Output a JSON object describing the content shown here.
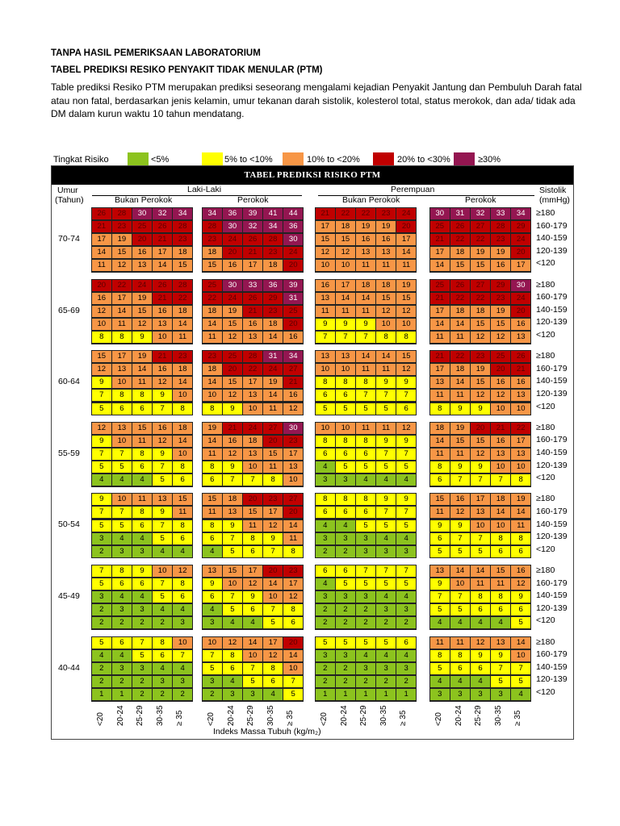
{
  "heading1": "TANPA HASIL PEMERIKSAAN LABORATORIUM",
  "heading2": "TABEL PREDIKSI RESIKO PENYAKIT TIDAK MENULAR (PTM)",
  "intro": "Table prediksi Resiko PTM merupakan prediksi seseorang mengalami kejadian Penyakit Jantung dan Pembuluh Darah  fatal atau non fatal, berdasarkan jenis kelamin, umur tekanan darah sistolik, kolesterol total, status merokok, dan ada/ tidak ada DM dalam kurun waktu 10 tahun mendatang.",
  "legend": {
    "title": "Tingkat Risiko",
    "items": [
      {
        "label": "<5%",
        "color": "#8cc31e"
      },
      {
        "label": "5% to <10%",
        "color": "#ffff00"
      },
      {
        "label": "10% to <20%",
        "color": "#f79646"
      },
      {
        "label": "20% to <30%",
        "color": "#c00000"
      },
      {
        "label": "≥30%",
        "color": "#941651"
      }
    ]
  },
  "table": {
    "title": "TABEL PREDIKSI RISIKO PTM",
    "age_header": "Umur",
    "age_unit": "(Tahun)",
    "sys_header": "Sistolik",
    "sys_unit": "(mmHg)",
    "sex": [
      "Laki-Laki",
      "Perempuan"
    ],
    "smoke": [
      "Bukan Perokok",
      "Perokok",
      "Bukan Perokok",
      "Perokok"
    ],
    "systolic": [
      "≥180",
      "160-179",
      "140-159",
      "120-139",
      "<120"
    ],
    "bmi": [
      "<20",
      "20-24",
      "25-29",
      "30-35",
      "≥ 35"
    ],
    "bmi_label": "Indeks Massa Tubuh (kg/m₂)",
    "groups": [
      {
        "age": "70-74",
        "panels": [
          [
            [
              26,
              28,
              30,
              32,
              34
            ],
            [
              21,
              23,
              25,
              26,
              28
            ],
            [
              17,
              19,
              20,
              21,
              23
            ],
            [
              14,
              15,
              16,
              17,
              18
            ],
            [
              11,
              12,
              13,
              14,
              15
            ]
          ],
          [
            [
              34,
              36,
              39,
              41,
              44
            ],
            [
              28,
              30,
              32,
              34,
              36
            ],
            [
              23,
              24,
              26,
              28,
              30
            ],
            [
              18,
              20,
              21,
              23,
              24
            ],
            [
              15,
              16,
              17,
              18,
              20
            ]
          ],
          [
            [
              21,
              22,
              22,
              23,
              24
            ],
            [
              17,
              18,
              19,
              19,
              20
            ],
            [
              15,
              15,
              16,
              16,
              17
            ],
            [
              12,
              12,
              13,
              13,
              14
            ],
            [
              10,
              10,
              11,
              11,
              11
            ]
          ],
          [
            [
              30,
              31,
              32,
              33,
              34
            ],
            [
              25,
              26,
              27,
              28,
              29
            ],
            [
              21,
              22,
              22,
              23,
              24
            ],
            [
              17,
              18,
              19,
              19,
              20
            ],
            [
              14,
              15,
              15,
              16,
              17
            ]
          ]
        ]
      },
      {
        "age": "65-69",
        "panels": [
          [
            [
              20,
              22,
              24,
              26,
              28
            ],
            [
              16,
              17,
              19,
              21,
              22
            ],
            [
              12,
              14,
              15,
              16,
              18
            ],
            [
              10,
              11,
              12,
              13,
              14
            ],
            [
              8,
              8,
              9,
              10,
              11
            ]
          ],
          [
            [
              25,
              30,
              33,
              36,
              39
            ],
            [
              22,
              24,
              26,
              29,
              31
            ],
            [
              18,
              19,
              21,
              23,
              25
            ],
            [
              14,
              15,
              16,
              18,
              20
            ],
            [
              11,
              12,
              13,
              14,
              16
            ]
          ],
          [
            [
              16,
              17,
              18,
              18,
              19
            ],
            [
              13,
              14,
              14,
              15,
              15
            ],
            [
              11,
              11,
              11,
              12,
              12
            ],
            [
              9,
              9,
              9,
              10,
              10
            ],
            [
              7,
              7,
              7,
              8,
              8
            ]
          ],
          [
            [
              25,
              26,
              27,
              29,
              30
            ],
            [
              21,
              22,
              22,
              23,
              24
            ],
            [
              17,
              18,
              18,
              19,
              20
            ],
            [
              14,
              14,
              15,
              15,
              16
            ],
            [
              11,
              11,
              12,
              12,
              13
            ]
          ]
        ]
      },
      {
        "age": "60-64",
        "panels": [
          [
            [
              15,
              17,
              19,
              21,
              23
            ],
            [
              12,
              13,
              14,
              16,
              18
            ],
            [
              9,
              10,
              11,
              12,
              14
            ],
            [
              7,
              8,
              8,
              9,
              10
            ],
            [
              5,
              6,
              6,
              7,
              8
            ]
          ],
          [
            [
              23,
              25,
              28,
              31,
              34
            ],
            [
              18,
              20,
              22,
              24,
              27
            ],
            [
              14,
              15,
              17,
              19,
              21
            ],
            [
              10,
              12,
              13,
              14,
              16
            ],
            [
              8,
              9,
              10,
              11,
              12
            ]
          ],
          [
            [
              13,
              13,
              14,
              14,
              15
            ],
            [
              10,
              10,
              11,
              11,
              12
            ],
            [
              8,
              8,
              8,
              9,
              9
            ],
            [
              6,
              6,
              7,
              7,
              7
            ],
            [
              5,
              5,
              5,
              5,
              6
            ]
          ],
          [
            [
              21,
              22,
              23,
              25,
              26
            ],
            [
              17,
              18,
              19,
              20,
              21
            ],
            [
              13,
              14,
              15,
              16,
              16
            ],
            [
              11,
              11,
              12,
              12,
              13
            ],
            [
              8,
              9,
              9,
              10,
              10
            ]
          ]
        ]
      },
      {
        "age": "55-59",
        "panels": [
          [
            [
              12,
              13,
              15,
              16,
              18
            ],
            [
              9,
              10,
              11,
              12,
              14
            ],
            [
              7,
              7,
              8,
              9,
              10
            ],
            [
              5,
              5,
              6,
              7,
              8
            ],
            [
              4,
              4,
              4,
              5,
              6
            ]
          ],
          [
            [
              19,
              21,
              24,
              27,
              30
            ],
            [
              14,
              16,
              18,
              20,
              23
            ],
            [
              11,
              12,
              13,
              15,
              17
            ],
            [
              8,
              9,
              10,
              11,
              13
            ],
            [
              6,
              7,
              7,
              8,
              10
            ]
          ],
          [
            [
              10,
              10,
              11,
              11,
              12
            ],
            [
              8,
              8,
              8,
              9,
              9
            ],
            [
              6,
              6,
              6,
              7,
              7
            ],
            [
              4,
              5,
              5,
              5,
              5
            ],
            [
              3,
              3,
              4,
              4,
              4
            ]
          ],
          [
            [
              18,
              19,
              20,
              21,
              22
            ],
            [
              14,
              15,
              15,
              16,
              17
            ],
            [
              11,
              11,
              12,
              13,
              13
            ],
            [
              8,
              9,
              9,
              10,
              10
            ],
            [
              6,
              7,
              7,
              7,
              8
            ]
          ]
        ]
      },
      {
        "age": "50-54",
        "panels": [
          [
            [
              9,
              10,
              11,
              13,
              15
            ],
            [
              7,
              7,
              8,
              9,
              11
            ],
            [
              5,
              5,
              6,
              7,
              8
            ],
            [
              3,
              4,
              4,
              5,
              6
            ],
            [
              2,
              3,
              3,
              4,
              4
            ]
          ],
          [
            [
              15,
              18,
              20,
              23,
              27
            ],
            [
              11,
              13,
              15,
              17,
              20
            ],
            [
              8,
              9,
              11,
              12,
              14
            ],
            [
              6,
              7,
              8,
              9,
              11
            ],
            [
              4,
              5,
              6,
              7,
              8
            ]
          ],
          [
            [
              8,
              8,
              8,
              9,
              9
            ],
            [
              6,
              6,
              6,
              7,
              7
            ],
            [
              4,
              4,
              5,
              5,
              5
            ],
            [
              3,
              3,
              3,
              4,
              4
            ],
            [
              2,
              2,
              3,
              3,
              3
            ]
          ],
          [
            [
              15,
              16,
              17,
              18,
              19
            ],
            [
              11,
              12,
              13,
              14,
              14
            ],
            [
              9,
              9,
              10,
              10,
              11
            ],
            [
              6,
              7,
              7,
              8,
              8
            ],
            [
              5,
              5,
              5,
              6,
              6
            ]
          ]
        ]
      },
      {
        "age": "45-49",
        "panels": [
          [
            [
              7,
              8,
              9,
              10,
              12
            ],
            [
              5,
              6,
              6,
              7,
              8
            ],
            [
              3,
              4,
              4,
              5,
              6
            ],
            [
              2,
              3,
              3,
              4,
              4
            ],
            [
              2,
              2,
              2,
              2,
              3
            ]
          ],
          [
            [
              13,
              15,
              17,
              20,
              23
            ],
            [
              9,
              10,
              12,
              14,
              17
            ],
            [
              6,
              7,
              9,
              10,
              12
            ],
            [
              4,
              5,
              6,
              7,
              8
            ],
            [
              3,
              4,
              4,
              5,
              6
            ]
          ],
          [
            [
              6,
              6,
              7,
              7,
              7
            ],
            [
              4,
              5,
              5,
              5,
              5
            ],
            [
              3,
              3,
              3,
              4,
              4
            ],
            [
              2,
              2,
              2,
              3,
              3
            ],
            [
              2,
              2,
              2,
              2,
              2
            ]
          ],
          [
            [
              13,
              14,
              14,
              15,
              16
            ],
            [
              9,
              10,
              11,
              11,
              12
            ],
            [
              7,
              7,
              8,
              8,
              9
            ],
            [
              5,
              5,
              6,
              6,
              6
            ],
            [
              4,
              4,
              4,
              4,
              5
            ]
          ]
        ]
      },
      {
        "age": "40-44",
        "panels": [
          [
            [
              5,
              6,
              7,
              8,
              10
            ],
            [
              4,
              4,
              5,
              6,
              7
            ],
            [
              2,
              3,
              3,
              4,
              4
            ],
            [
              2,
              2,
              2,
              3,
              3
            ],
            [
              1,
              1,
              2,
              2,
              2
            ]
          ],
          [
            [
              10,
              12,
              14,
              17,
              20
            ],
            [
              7,
              8,
              10,
              12,
              14
            ],
            [
              5,
              6,
              7,
              8,
              10
            ],
            [
              3,
              4,
              5,
              6,
              7
            ],
            [
              2,
              3,
              3,
              4,
              5
            ]
          ],
          [
            [
              5,
              5,
              5,
              5,
              6
            ],
            [
              3,
              3,
              4,
              4,
              4
            ],
            [
              2,
              2,
              3,
              3,
              3
            ],
            [
              2,
              2,
              2,
              2,
              2
            ],
            [
              1,
              1,
              1,
              1,
              1
            ]
          ],
          [
            [
              11,
              11,
              12,
              13,
              14
            ],
            [
              8,
              8,
              9,
              9,
              10
            ],
            [
              5,
              6,
              6,
              7,
              7
            ],
            [
              4,
              4,
              4,
              5,
              5
            ],
            [
              3,
              3,
              3,
              3,
              4
            ]
          ]
        ]
      }
    ]
  }
}
